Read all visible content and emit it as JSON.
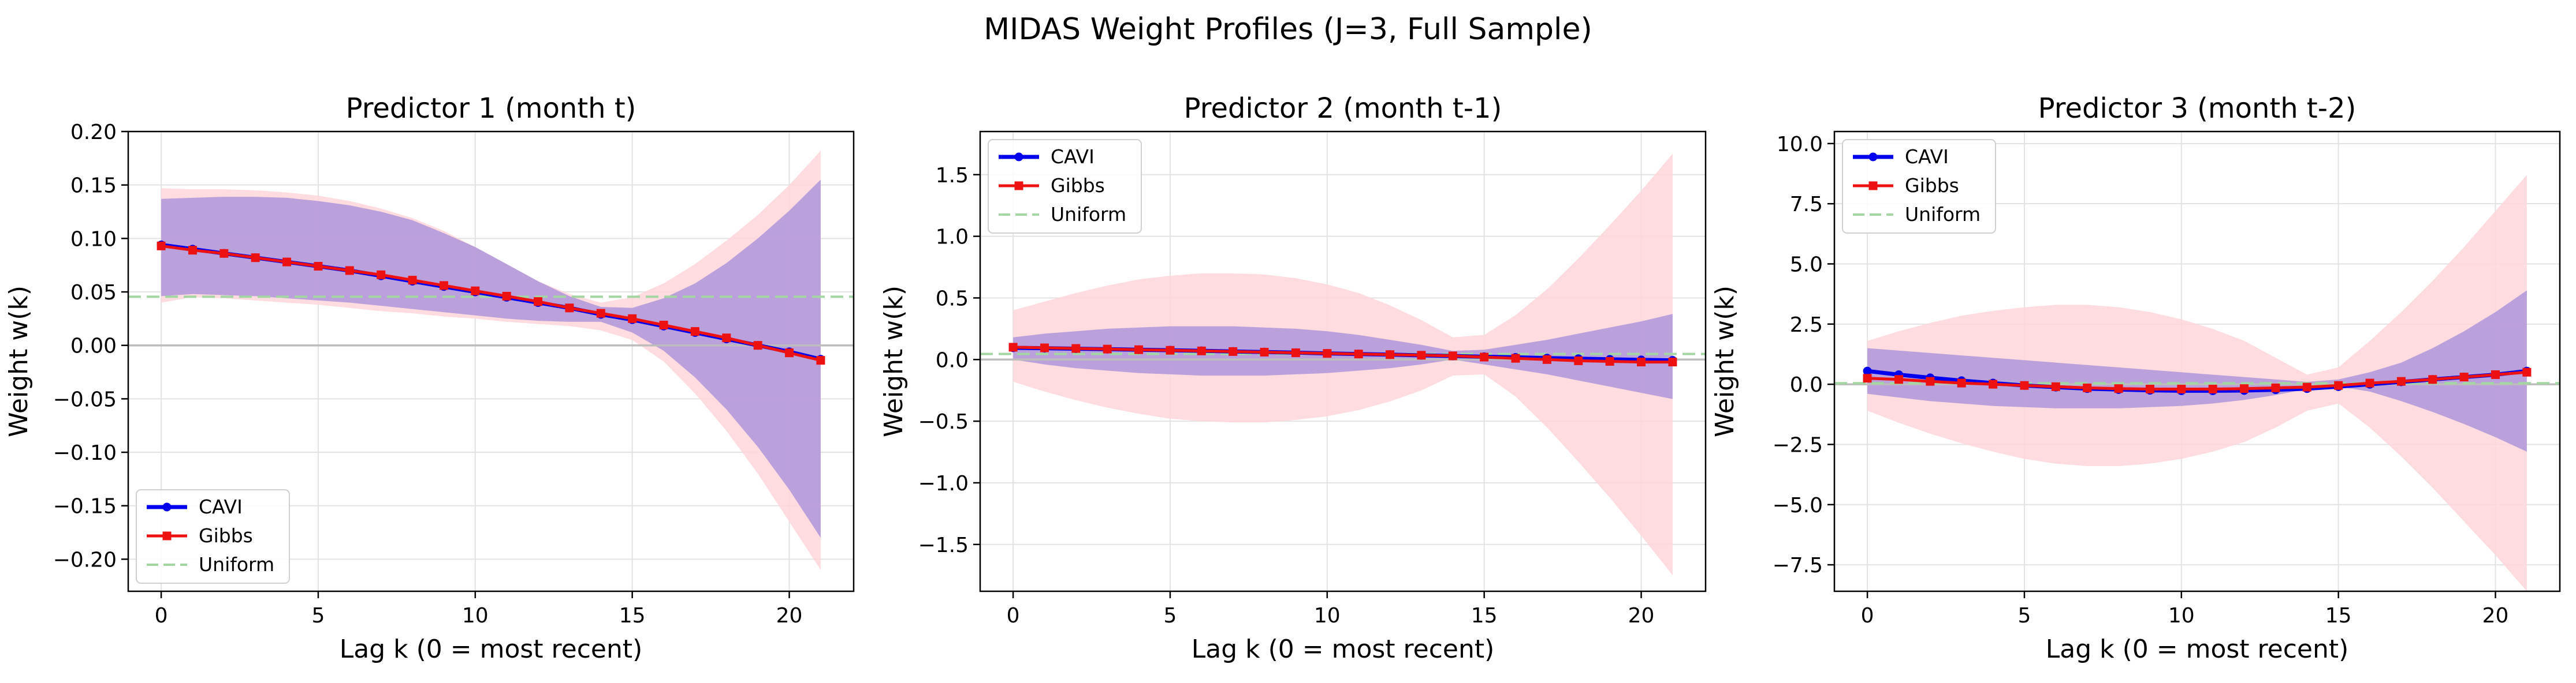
{
  "figure": {
    "title": "MIDAS Weight Profiles (J=3, Full Sample)"
  },
  "colors": {
    "cavi": "#0000ee",
    "gibbs": "#ee1111",
    "uniform": "#a3d6a3",
    "cavi_band": "#b49adb",
    "gibbs_band": "#ffd6d9",
    "grid": "#e3e3e3",
    "zero_line": "#bdbdbd"
  },
  "chart_data": [
    {
      "type": "line",
      "title": "Predictor 1 (month t)",
      "xlabel": "Lag k (0 = most recent)",
      "ylabel": "Weight w(k)",
      "xlim": [
        -1.05,
        22.05
      ],
      "ylim": [
        -0.23,
        0.2
      ],
      "xticks": [
        0,
        5,
        10,
        15,
        20
      ],
      "yticks": [
        -0.2,
        -0.15,
        -0.1,
        -0.05,
        0.0,
        0.05,
        0.1,
        0.15,
        0.2
      ],
      "ytick_labels": [
        "−0.20",
        "−0.15",
        "−0.10",
        "−0.05",
        "0.00",
        "0.05",
        "0.10",
        "0.15",
        "0.20"
      ],
      "grid": true,
      "legend": {
        "position": "lower-left",
        "entries": [
          "CAVI",
          "Gibbs",
          "Uniform"
        ]
      },
      "x": [
        0,
        1,
        2,
        3,
        4,
        5,
        6,
        7,
        8,
        9,
        10,
        11,
        12,
        13,
        14,
        15,
        16,
        17,
        18,
        19,
        20,
        21
      ],
      "uniform_value": 0.0455,
      "series": [
        {
          "name": "CAVI",
          "marker": "circle",
          "values": [
            0.094,
            0.09,
            0.086,
            0.082,
            0.078,
            0.074,
            0.07,
            0.065,
            0.06,
            0.055,
            0.05,
            0.045,
            0.04,
            0.035,
            0.029,
            0.024,
            0.018,
            0.012,
            0.006,
            0.0,
            -0.006,
            -0.013
          ],
          "band_lower": [
            0.046,
            0.048,
            0.047,
            0.046,
            0.044,
            0.042,
            0.04,
            0.037,
            0.034,
            0.031,
            0.028,
            0.025,
            0.023,
            0.022,
            0.022,
            0.012,
            -0.005,
            -0.03,
            -0.06,
            -0.095,
            -0.135,
            -0.18
          ],
          "band_upper": [
            0.137,
            0.138,
            0.139,
            0.139,
            0.138,
            0.135,
            0.131,
            0.125,
            0.117,
            0.105,
            0.092,
            0.076,
            0.06,
            0.046,
            0.036,
            0.035,
            0.044,
            0.058,
            0.077,
            0.1,
            0.126,
            0.155
          ]
        },
        {
          "name": "Gibbs",
          "marker": "square",
          "values": [
            0.093,
            0.089,
            0.086,
            0.082,
            0.078,
            0.074,
            0.07,
            0.066,
            0.061,
            0.056,
            0.051,
            0.046,
            0.041,
            0.035,
            0.03,
            0.025,
            0.019,
            0.013,
            0.007,
            0.0,
            -0.007,
            -0.014
          ],
          "band_lower": [
            0.04,
            0.045,
            0.044,
            0.042,
            0.04,
            0.038,
            0.035,
            0.032,
            0.03,
            0.027,
            0.025,
            0.022,
            0.02,
            0.018,
            0.014,
            0.005,
            -0.015,
            -0.045,
            -0.08,
            -0.12,
            -0.165,
            -0.21
          ],
          "band_upper": [
            0.147,
            0.146,
            0.146,
            0.145,
            0.143,
            0.14,
            0.135,
            0.128,
            0.119,
            0.107,
            0.092,
            0.076,
            0.06,
            0.048,
            0.04,
            0.045,
            0.058,
            0.076,
            0.098,
            0.122,
            0.15,
            0.182
          ]
        }
      ]
    },
    {
      "type": "line",
      "title": "Predictor 2 (month t-1)",
      "xlabel": "Lag k (0 = most recent)",
      "ylabel": "Weight w(k)",
      "xlim": [
        -1.05,
        22.05
      ],
      "ylim": [
        -1.88,
        1.85
      ],
      "xticks": [
        0,
        5,
        10,
        15,
        20
      ],
      "yticks": [
        -1.5,
        -1.0,
        -0.5,
        0.0,
        0.5,
        1.0,
        1.5
      ],
      "ytick_labels": [
        "−1.5",
        "−1.0",
        "−0.5",
        "0.0",
        "0.5",
        "1.0",
        "1.5"
      ],
      "grid": true,
      "legend": {
        "position": "top-left",
        "entries": [
          "CAVI",
          "Gibbs",
          "Uniform"
        ]
      },
      "x": [
        0,
        1,
        2,
        3,
        4,
        5,
        6,
        7,
        8,
        9,
        10,
        11,
        12,
        13,
        14,
        15,
        16,
        17,
        18,
        19,
        20,
        21
      ],
      "uniform_value": 0.0455,
      "series": [
        {
          "name": "CAVI",
          "marker": "circle",
          "values": [
            0.095,
            0.092,
            0.088,
            0.084,
            0.08,
            0.076,
            0.071,
            0.066,
            0.061,
            0.056,
            0.05,
            0.045,
            0.04,
            0.034,
            0.029,
            0.023,
            0.018,
            0.012,
            0.007,
            0.002,
            -0.003,
            -0.006
          ],
          "band_lower": [
            0.0,
            -0.04,
            -0.07,
            -0.09,
            -0.11,
            -0.12,
            -0.13,
            -0.13,
            -0.13,
            -0.12,
            -0.11,
            -0.09,
            -0.07,
            -0.04,
            0.0,
            -0.04,
            -0.08,
            -0.12,
            -0.17,
            -0.22,
            -0.27,
            -0.32
          ],
          "band_upper": [
            0.18,
            0.21,
            0.23,
            0.25,
            0.26,
            0.27,
            0.27,
            0.27,
            0.26,
            0.25,
            0.23,
            0.2,
            0.16,
            0.12,
            0.07,
            0.08,
            0.12,
            0.16,
            0.21,
            0.26,
            0.31,
            0.37
          ]
        },
        {
          "name": "Gibbs",
          "marker": "square",
          "values": [
            0.1,
            0.095,
            0.09,
            0.085,
            0.08,
            0.075,
            0.07,
            0.065,
            0.06,
            0.055,
            0.05,
            0.045,
            0.04,
            0.035,
            0.03,
            0.02,
            0.01,
            0.0,
            -0.01,
            -0.015,
            -0.02,
            -0.02
          ],
          "band_lower": [
            -0.18,
            -0.26,
            -0.33,
            -0.39,
            -0.44,
            -0.48,
            -0.5,
            -0.51,
            -0.51,
            -0.49,
            -0.46,
            -0.41,
            -0.34,
            -0.25,
            -0.13,
            -0.12,
            -0.3,
            -0.55,
            -0.83,
            -1.12,
            -1.43,
            -1.75
          ],
          "band_upper": [
            0.4,
            0.47,
            0.54,
            0.6,
            0.65,
            0.68,
            0.7,
            0.7,
            0.69,
            0.66,
            0.61,
            0.54,
            0.44,
            0.32,
            0.18,
            0.2,
            0.36,
            0.57,
            0.82,
            1.09,
            1.37,
            1.67
          ]
        }
      ]
    },
    {
      "type": "line",
      "title": "Predictor 3 (month t-2)",
      "xlabel": "Lag k (0 = most recent)",
      "ylabel": "Weight w(k)",
      "xlim": [
        -1.05,
        22.05
      ],
      "ylim": [
        -8.6,
        10.5
      ],
      "xticks": [
        0,
        5,
        10,
        15,
        20
      ],
      "yticks": [
        -7.5,
        -5.0,
        -2.5,
        0.0,
        2.5,
        5.0,
        7.5,
        10.0
      ],
      "ytick_labels": [
        "−7.5",
        "−5.0",
        "−2.5",
        "0.0",
        "2.5",
        "5.0",
        "7.5",
        "10.0"
      ],
      "grid": true,
      "legend": {
        "position": "top-left",
        "entries": [
          "CAVI",
          "Gibbs",
          "Uniform"
        ]
      },
      "x": [
        0,
        1,
        2,
        3,
        4,
        5,
        6,
        7,
        8,
        9,
        10,
        11,
        12,
        13,
        14,
        15,
        16,
        17,
        18,
        19,
        20,
        21
      ],
      "uniform_value": 0.0455,
      "series": [
        {
          "name": "CAVI",
          "marker": "circle",
          "values": [
            0.55,
            0.4,
            0.27,
            0.15,
            0.05,
            -0.05,
            -0.12,
            -0.18,
            -0.22,
            -0.25,
            -0.27,
            -0.27,
            -0.26,
            -0.23,
            -0.18,
            -0.1,
            0.0,
            0.1,
            0.2,
            0.3,
            0.4,
            0.55
          ],
          "band_lower": [
            -0.4,
            -0.55,
            -0.7,
            -0.8,
            -0.9,
            -0.95,
            -1.0,
            -1.0,
            -1.0,
            -0.95,
            -0.9,
            -0.8,
            -0.65,
            -0.45,
            -0.2,
            -0.1,
            -0.3,
            -0.7,
            -1.15,
            -1.65,
            -2.2,
            -2.8
          ],
          "band_upper": [
            1.5,
            1.4,
            1.3,
            1.2,
            1.1,
            1.0,
            0.9,
            0.8,
            0.7,
            0.6,
            0.5,
            0.4,
            0.3,
            0.2,
            0.1,
            0.2,
            0.5,
            0.9,
            1.5,
            2.2,
            3.0,
            3.9
          ]
        },
        {
          "name": "Gibbs",
          "marker": "square",
          "values": [
            0.25,
            0.2,
            0.12,
            0.05,
            0.0,
            -0.05,
            -0.1,
            -0.15,
            -0.18,
            -0.2,
            -0.2,
            -0.2,
            -0.18,
            -0.15,
            -0.12,
            -0.05,
            0.05,
            0.12,
            0.2,
            0.3,
            0.4,
            0.5
          ],
          "band_lower": [
            -1.1,
            -1.6,
            -2.05,
            -2.45,
            -2.8,
            -3.1,
            -3.3,
            -3.4,
            -3.4,
            -3.3,
            -3.1,
            -2.8,
            -2.4,
            -1.8,
            -1.1,
            -0.8,
            -1.8,
            -3.0,
            -4.3,
            -5.7,
            -7.1,
            -8.6
          ],
          "band_upper": [
            1.8,
            2.2,
            2.55,
            2.85,
            3.05,
            3.2,
            3.3,
            3.3,
            3.2,
            3.0,
            2.7,
            2.3,
            1.8,
            1.1,
            0.4,
            0.7,
            1.8,
            3.0,
            4.3,
            5.7,
            7.2,
            8.7
          ]
        }
      ]
    }
  ]
}
